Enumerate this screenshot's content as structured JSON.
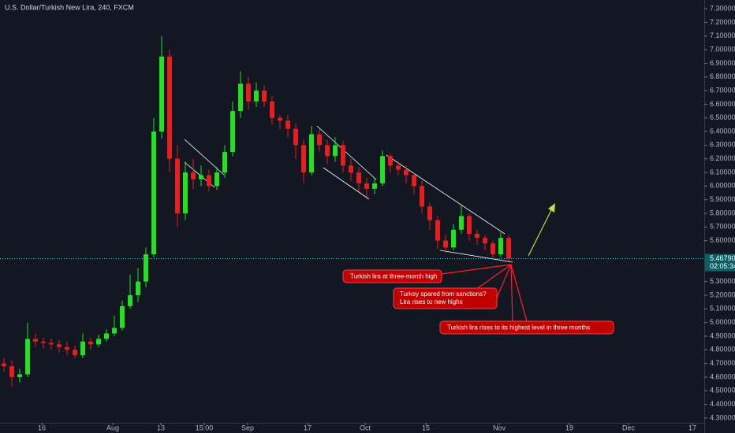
{
  "chart_data": {
    "type": "candlestick",
    "title": "U.S. Dollar/Turkish New Lira, 240, FXCM",
    "up_color": "#22e022",
    "down_color": "#e61e1e",
    "xlim": [
      0,
      89.3
    ],
    "ylim": [
      4.265,
      7.364
    ],
    "open": [
      4.7,
      4.68,
      4.6,
      4.62,
      4.88,
      4.86,
      4.85,
      4.84,
      4.82,
      4.8,
      4.76,
      4.86,
      4.84,
      4.88,
      4.92,
      4.96,
      5.12,
      5.2,
      5.3,
      5.5,
      6.4,
      6.95,
      6.2,
      5.8,
      6.1,
      6.05,
      6.08,
      6.0,
      6.1,
      6.25,
      6.55,
      6.75,
      6.62,
      6.7,
      6.62,
      6.5,
      6.48,
      6.42,
      6.3,
      6.1,
      6.38,
      6.3,
      6.22,
      6.3,
      6.15,
      6.1,
      6.02,
      5.98,
      6.02,
      6.22,
      6.15,
      6.12,
      6.08,
      6.0,
      5.85,
      5.75,
      5.6,
      5.55,
      5.68,
      5.78,
      5.65,
      5.62,
      5.58,
      5.5,
      5.62
    ],
    "high": [
      4.74,
      4.72,
      4.66,
      5.0,
      4.92,
      4.89,
      4.88,
      4.87,
      4.86,
      4.83,
      4.92,
      4.89,
      4.91,
      4.95,
      5.05,
      5.16,
      5.35,
      5.4,
      5.55,
      6.5,
      7.1,
      7.0,
      6.3,
      6.18,
      6.2,
      6.15,
      6.12,
      6.14,
      6.3,
      6.62,
      6.84,
      6.8,
      6.76,
      6.74,
      6.66,
      6.52,
      6.52,
      6.46,
      6.34,
      6.44,
      6.42,
      6.34,
      6.36,
      6.33,
      6.2,
      6.14,
      6.06,
      6.06,
      6.26,
      6.24,
      6.18,
      6.15,
      6.1,
      6.04,
      5.88,
      5.78,
      5.64,
      5.72,
      5.86,
      5.8,
      5.68,
      5.64,
      5.6,
      5.66,
      5.64
    ],
    "low": [
      4.64,
      4.53,
      4.56,
      4.6,
      4.82,
      4.81,
      4.8,
      4.78,
      4.76,
      4.74,
      4.74,
      4.8,
      4.82,
      4.86,
      4.9,
      4.94,
      5.1,
      5.15,
      5.26,
      5.48,
      6.35,
      6.1,
      5.7,
      5.75,
      5.98,
      6.0,
      5.96,
      5.97,
      6.06,
      6.22,
      6.5,
      6.56,
      6.58,
      6.58,
      6.45,
      6.42,
      6.36,
      6.2,
      6.02,
      6.08,
      6.25,
      6.16,
      6.18,
      6.1,
      6.04,
      5.96,
      5.92,
      5.94,
      6.0,
      6.1,
      6.08,
      6.02,
      5.94,
      5.8,
      5.68,
      5.54,
      5.51,
      5.53,
      5.65,
      5.6,
      5.57,
      5.53,
      5.46,
      5.48,
      5.45
    ],
    "close": [
      4.68,
      4.6,
      4.62,
      4.88,
      4.86,
      4.85,
      4.84,
      4.82,
      4.8,
      4.76,
      4.86,
      4.84,
      4.88,
      4.92,
      4.96,
      5.12,
      5.2,
      5.3,
      5.5,
      6.4,
      6.95,
      6.2,
      5.8,
      6.1,
      6.05,
      6.08,
      6.0,
      6.1,
      6.25,
      6.55,
      6.75,
      6.62,
      6.7,
      6.62,
      6.5,
      6.48,
      6.42,
      6.3,
      6.1,
      6.38,
      6.3,
      6.22,
      6.3,
      6.15,
      6.1,
      6.02,
      5.98,
      6.02,
      6.22,
      6.15,
      6.12,
      6.08,
      6.0,
      5.85,
      5.75,
      5.6,
      5.55,
      5.68,
      5.78,
      5.65,
      5.62,
      5.58,
      5.5,
      5.62,
      5.47
    ],
    "yticks": [
      {
        "value": 4.3,
        "label": "4.30000"
      },
      {
        "value": 4.4,
        "label": "4.40000"
      },
      {
        "value": 4.5,
        "label": "4.50000"
      },
      {
        "value": 4.6,
        "label": "4.60000"
      },
      {
        "value": 4.7,
        "label": "4.70000"
      },
      {
        "value": 4.8,
        "label": "4.80000"
      },
      {
        "value": 4.9,
        "label": "4.90000"
      },
      {
        "value": 5.0,
        "label": "5.00000"
      },
      {
        "value": 5.1,
        "label": "5.10000"
      },
      {
        "value": 5.2,
        "label": "5.20000"
      },
      {
        "value": 5.3,
        "label": "5.30000"
      },
      {
        "value": 5.6,
        "label": "5.60000"
      },
      {
        "value": 5.7,
        "label": "5.70000"
      },
      {
        "value": 5.8,
        "label": "5.80000"
      },
      {
        "value": 5.9,
        "label": "5.90000"
      },
      {
        "value": 6.0,
        "label": "6.00000"
      },
      {
        "value": 6.1,
        "label": "6.10000"
      },
      {
        "value": 6.2,
        "label": "6.20000"
      },
      {
        "value": 6.3,
        "label": "6.30000"
      },
      {
        "value": 6.4,
        "label": "6.40000"
      },
      {
        "value": 6.5,
        "label": "6.50000"
      },
      {
        "value": 6.6,
        "label": "6.60000"
      },
      {
        "value": 6.7,
        "label": "6.70000"
      },
      {
        "value": 6.8,
        "label": "6.80000"
      },
      {
        "value": 6.9,
        "label": "6.90000"
      },
      {
        "value": 7.0,
        "label": "7.00000"
      },
      {
        "value": 7.1,
        "label": "7.10000"
      },
      {
        "value": 7.2,
        "label": "7.20000"
      },
      {
        "value": 7.3,
        "label": "7.30000"
      }
    ],
    "xticks": [
      {
        "value": 5.3,
        "label": "16"
      },
      {
        "value": 14.3,
        "label": "Aug"
      },
      {
        "value": 20.4,
        "label": "13"
      },
      {
        "value": 25.9,
        "label": "15:00"
      },
      {
        "value": 31.4,
        "label": "Sep"
      },
      {
        "value": 39.0,
        "label": "17"
      },
      {
        "value": 46.3,
        "label": "Oct"
      },
      {
        "value": 54.0,
        "label": "15"
      },
      {
        "value": 63.3,
        "label": "Nov"
      },
      {
        "value": 72.2,
        "label": "19"
      },
      {
        "value": 79.7,
        "label": "Dec"
      },
      {
        "value": 87.8,
        "label": "17"
      }
    ],
    "last_price": {
      "value": 5.4679,
      "label": "5.46790"
    },
    "countdown": "02:05:34",
    "annotations": [
      {
        "text": [
          "Turkish lira at three-month high"
        ]
      },
      {
        "text": [
          "Turkey spared from sanctions?",
          "Lira rises to new highs"
        ]
      },
      {
        "text": [
          "Turkish lira rises to its highest level in three months"
        ]
      }
    ]
  }
}
